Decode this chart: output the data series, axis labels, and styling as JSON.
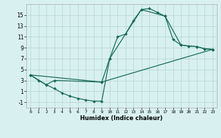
{
  "xlabel": "Humidex (Indice chaleur)",
  "bg_color": "#d8f0f0",
  "grid_color": "#b8d8d8",
  "line_color": "#1a6b5a",
  "line1_x": [
    0,
    1,
    2,
    3,
    4,
    5,
    6,
    7,
    8,
    9,
    10,
    11,
    12,
    13,
    14,
    15,
    16,
    17,
    18,
    19,
    20,
    21,
    22,
    23
  ],
  "line1_y": [
    4.0,
    3.0,
    2.2,
    1.5,
    0.7,
    0.1,
    -0.3,
    -0.6,
    -0.8,
    -0.8,
    7.0,
    11.0,
    11.5,
    14.0,
    16.0,
    16.2,
    15.5,
    14.8,
    10.5,
    9.5,
    9.3,
    9.2,
    8.8,
    8.7
  ],
  "line2_x": [
    0,
    2,
    3,
    9,
    10,
    14,
    17,
    19,
    20,
    21,
    22,
    23
  ],
  "line2_y": [
    4.0,
    2.2,
    3.0,
    2.7,
    7.0,
    16.0,
    14.8,
    9.5,
    9.3,
    9.2,
    8.8,
    8.7
  ],
  "line3_x": [
    0,
    9,
    23
  ],
  "line3_y": [
    4.0,
    2.7,
    8.7
  ],
  "xlim": [
    -0.5,
    23.5
  ],
  "ylim": [
    -2,
    17
  ],
  "xticks": [
    0,
    1,
    2,
    3,
    4,
    5,
    6,
    7,
    8,
    9,
    10,
    11,
    12,
    13,
    14,
    15,
    16,
    17,
    18,
    19,
    20,
    21,
    22,
    23
  ],
  "yticks": [
    -1,
    1,
    3,
    5,
    7,
    9,
    11,
    13,
    15
  ],
  "marker_size": 2.0,
  "line_width": 0.9
}
